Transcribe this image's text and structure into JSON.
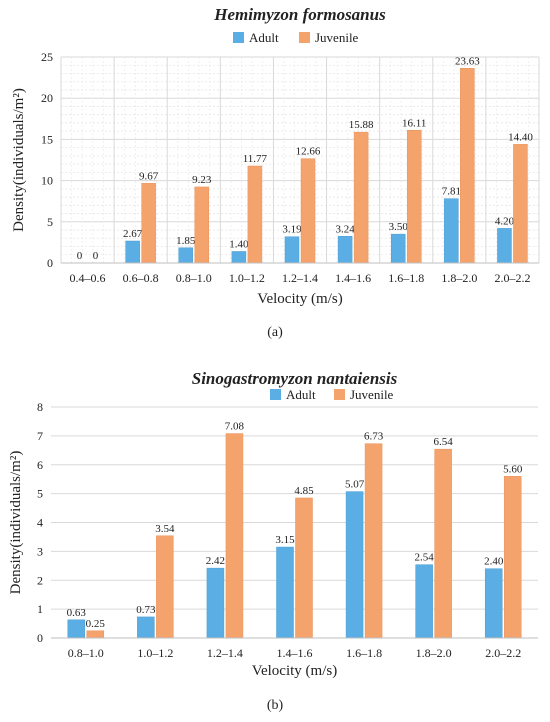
{
  "chart_data": [
    {
      "type": "bar",
      "title": "Hemimyzon formosanus",
      "xlabel": "Velocity (m/s)",
      "ylabel": "Density(individuals/m²)",
      "panel_label": "(a)",
      "ylim": [
        0,
        25
      ],
      "yticks": [
        0,
        5,
        10,
        15,
        20,
        25
      ],
      "grid": true,
      "legend_position": "top",
      "categories": [
        "0.4–0.6",
        "0.6–0.8",
        "0.8–1.0",
        "1.0–1.2",
        "1.2–1.4",
        "1.4–1.6",
        "1.6–1.8",
        "1.8–2.0",
        "2.0–2.2"
      ],
      "series": [
        {
          "name": "Adult",
          "color": "#5BAEE3",
          "values": [
            0,
            2.67,
            1.85,
            1.4,
            3.19,
            3.24,
            3.5,
            7.81,
            4.2
          ],
          "labels": [
            "0",
            "2.67",
            "1.85",
            "1.40",
            "3.19",
            "3.24",
            "3.50",
            "7.81",
            "4.20"
          ]
        },
        {
          "name": "Juvenile",
          "color": "#F5A36C",
          "values": [
            0,
            9.67,
            9.23,
            11.77,
            12.66,
            15.88,
            16.11,
            23.63,
            14.4
          ],
          "labels": [
            "0",
            "9.67",
            "9.23",
            "11.77",
            "12.66",
            "15.88",
            "16.11",
            "23.63",
            "14.40"
          ]
        }
      ]
    },
    {
      "type": "bar",
      "title": "Sinogastromyzon nantaiensis",
      "xlabel": "Velocity (m/s)",
      "ylabel": "Density(individuals/m²)",
      "panel_label": "(b)",
      "ylim": [
        0,
        8
      ],
      "yticks": [
        0,
        1,
        2,
        3,
        4,
        5,
        6,
        7,
        8
      ],
      "grid": false,
      "legend_position": "top",
      "categories": [
        "0.8–1.0",
        "1.0–1.2",
        "1.2–1.4",
        "1.4–1.6",
        "1.6–1.8",
        "1.8–2.0",
        "2.0–2.2"
      ],
      "series": [
        {
          "name": "Adult",
          "color": "#5BAEE3",
          "values": [
            0.63,
            0.73,
            2.42,
            3.15,
            5.07,
            2.54,
            2.4
          ],
          "labels": [
            "0.63",
            "0.73",
            "2.42",
            "3.15",
            "5.07",
            "2.54",
            "2.40"
          ]
        },
        {
          "name": "Juvenile",
          "color": "#F5A36C",
          "values": [
            0.25,
            3.54,
            7.08,
            4.85,
            6.73,
            6.54,
            5.6
          ],
          "labels": [
            "0.25",
            "3.54",
            "7.08",
            "4.85",
            "6.73",
            "6.54",
            "5.60"
          ]
        }
      ]
    }
  ]
}
